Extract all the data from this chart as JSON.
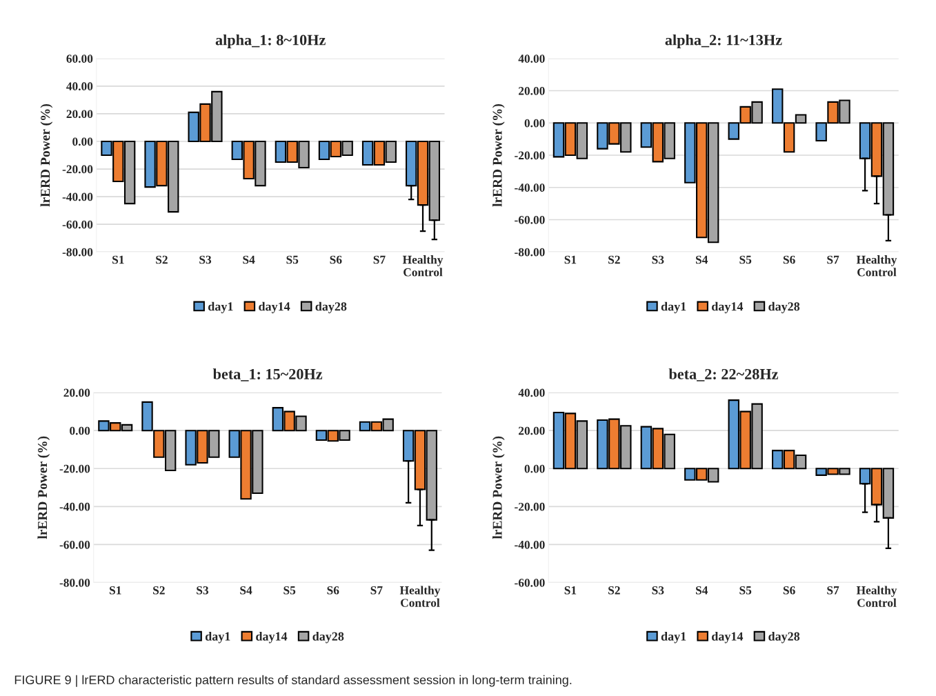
{
  "chart_data": [
    {
      "type": "bar",
      "title": "alpha_1: 8~10Hz",
      "ylabel": "lrERD Power (%)",
      "categories": [
        "S1",
        "S2",
        "S3",
        "S4",
        "S5",
        "S6",
        "S7",
        "Healthy\nControl"
      ],
      "ylim": [
        -80,
        60
      ],
      "yticks": [
        {
          "value": -80,
          "label": "-80.00"
        },
        {
          "value": -60,
          "label": "-60.00"
        },
        {
          "value": -40,
          "label": "-40.00"
        },
        {
          "value": -20,
          "label": "-20.00"
        },
        {
          "value": 0,
          "label": "0.00"
        },
        {
          "value": 20,
          "label": "20.00"
        },
        {
          "value": 40,
          "label": "40.00"
        },
        {
          "value": 60,
          "label": "60.00"
        }
      ],
      "grid": "y",
      "legend": "bottom",
      "series": [
        {
          "name": "day1",
          "color": "#5b9bd5",
          "values": [
            -10,
            -33,
            21,
            -13,
            -15,
            -13,
            -17,
            -32
          ],
          "errors": [
            null,
            null,
            null,
            null,
            null,
            null,
            null,
            [
              -42,
              -32
            ]
          ]
        },
        {
          "name": "day14",
          "color": "#ed7d31",
          "values": [
            -29,
            -32,
            27,
            -27,
            -15,
            -11,
            -17,
            -46
          ],
          "errors": [
            null,
            null,
            null,
            null,
            null,
            null,
            null,
            [
              -65,
              -46
            ]
          ]
        },
        {
          "name": "day28",
          "color": "#a5a5a5",
          "values": [
            -45,
            -51,
            36,
            -32,
            -19,
            -10,
            -15,
            -57
          ],
          "errors": [
            null,
            null,
            null,
            null,
            null,
            null,
            null,
            [
              -71,
              -57
            ]
          ]
        }
      ],
      "annotations": [
        "FIGURE 9 | lrERD characteristic pattern results of standard assessment session in long-term training."
      ]
    },
    {
      "type": "bar",
      "title": "alpha_2: 11~13Hz",
      "ylabel": "lrERD Power (%)",
      "categories": [
        "S1",
        "S2",
        "S3",
        "S4",
        "S5",
        "S6",
        "S7",
        "Healthy\nControl"
      ],
      "ylim": [
        -80,
        40
      ],
      "yticks": [
        {
          "value": -80,
          "label": "-80.00"
        },
        {
          "value": -60,
          "label": "-60.00"
        },
        {
          "value": -40,
          "label": "-40.00"
        },
        {
          "value": -20,
          "label": "-20.00"
        },
        {
          "value": 0,
          "label": "0.00"
        },
        {
          "value": 20,
          "label": "20.00"
        },
        {
          "value": 40,
          "label": "40.00"
        }
      ],
      "grid": "y",
      "legend": "bottom",
      "series": [
        {
          "name": "day1",
          "color": "#5b9bd5",
          "values": [
            -21,
            -16,
            -15,
            -37,
            -10,
            21,
            -11,
            -22
          ],
          "errors": [
            null,
            null,
            null,
            null,
            null,
            null,
            null,
            [
              -42,
              -22
            ]
          ]
        },
        {
          "name": "day14",
          "color": "#ed7d31",
          "values": [
            -20,
            -13,
            -24,
            -71,
            10,
            -18,
            13,
            -33
          ],
          "errors": [
            null,
            null,
            null,
            null,
            null,
            null,
            null,
            [
              -50,
              -33
            ]
          ]
        },
        {
          "name": "day28",
          "color": "#a5a5a5",
          "values": [
            -22,
            -18,
            -22,
            -74,
            13,
            5,
            14,
            -57
          ],
          "errors": [
            null,
            null,
            null,
            null,
            null,
            null,
            null,
            [
              -73,
              -57
            ]
          ]
        }
      ]
    },
    {
      "type": "bar",
      "title": "beta_1: 15~20Hz",
      "ylabel": "lrERD Power (%)",
      "categories": [
        "S1",
        "S2",
        "S3",
        "S4",
        "S5",
        "S6",
        "S7",
        "Healthy\nControl"
      ],
      "ylim": [
        -80,
        20
      ],
      "yticks": [
        {
          "value": -80,
          "label": "-80.00"
        },
        {
          "value": -60,
          "label": "-60.00"
        },
        {
          "value": -40,
          "label": "-40.00"
        },
        {
          "value": -20,
          "label": "-20.00"
        },
        {
          "value": 0,
          "label": "0.00"
        },
        {
          "value": 20,
          "label": "20.00"
        }
      ],
      "grid": "y",
      "legend": "bottom",
      "series": [
        {
          "name": "day1",
          "color": "#5b9bd5",
          "values": [
            5,
            15,
            -18,
            -14,
            12,
            -5,
            4.5,
            -16
          ],
          "errors": [
            null,
            null,
            null,
            null,
            null,
            null,
            null,
            [
              -38,
              -16
            ]
          ]
        },
        {
          "name": "day14",
          "color": "#ed7d31",
          "values": [
            4,
            -14,
            -17,
            -36,
            10,
            -5.5,
            4.5,
            -31
          ],
          "errors": [
            null,
            null,
            null,
            null,
            null,
            null,
            null,
            [
              -50,
              -31
            ]
          ]
        },
        {
          "name": "day28",
          "color": "#a5a5a5",
          "values": [
            3,
            -21,
            -14,
            -33,
            7.5,
            -5,
            6,
            -47
          ],
          "errors": [
            null,
            null,
            null,
            null,
            null,
            null,
            null,
            [
              -63,
              -47
            ]
          ]
        }
      ]
    },
    {
      "type": "bar",
      "title": "beta_2: 22~28Hz",
      "ylabel": "lrERD Power (%)",
      "categories": [
        "S1",
        "S2",
        "S3",
        "S4",
        "S5",
        "S6",
        "S7",
        "Healthy\nControl"
      ],
      "ylim": [
        -60,
        40
      ],
      "yticks": [
        {
          "value": -60,
          "label": "-60.00"
        },
        {
          "value": -40,
          "label": "-40.00"
        },
        {
          "value": -20,
          "label": "-20.00"
        },
        {
          "value": 0,
          "label": "0.00"
        },
        {
          "value": 20,
          "label": "20.00"
        },
        {
          "value": 40,
          "label": "40.00"
        }
      ],
      "grid": "y",
      "legend": "bottom",
      "series": [
        {
          "name": "day1",
          "color": "#5b9bd5",
          "values": [
            29.5,
            25.5,
            22,
            -6,
            36,
            9.5,
            -3.5,
            -8
          ],
          "errors": [
            null,
            null,
            null,
            null,
            null,
            null,
            null,
            [
              -23,
              -8
            ]
          ]
        },
        {
          "name": "day14",
          "color": "#ed7d31",
          "values": [
            29,
            26,
            21,
            -6,
            30,
            9.5,
            -3,
            -19
          ],
          "errors": [
            null,
            null,
            null,
            null,
            null,
            null,
            null,
            [
              -28,
              -19
            ]
          ]
        },
        {
          "name": "day28",
          "color": "#a5a5a5",
          "values": [
            25,
            22.5,
            18,
            -7,
            34,
            7,
            -3,
            -26
          ],
          "errors": [
            null,
            null,
            null,
            null,
            null,
            null,
            null,
            [
              -42,
              -26
            ]
          ]
        }
      ]
    }
  ]
}
